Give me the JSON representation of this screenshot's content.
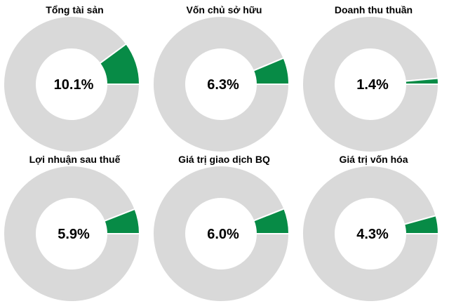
{
  "chart_data": [
    {
      "type": "pie",
      "title": "Tổng tài sản",
      "value_label": "10.1%",
      "value": 10.1,
      "remainder": 89.9
    },
    {
      "type": "pie",
      "title": "Vốn chủ sở hữu",
      "value_label": "6.3%",
      "value": 6.3,
      "remainder": 93.7
    },
    {
      "type": "pie",
      "title": "Doanh thu thuần",
      "value_label": "1.4%",
      "value": 1.4,
      "remainder": 98.6
    },
    {
      "type": "pie",
      "title": "Lợi nhuận sau thuế",
      "value_label": "5.9%",
      "value": 5.9,
      "remainder": 94.1
    },
    {
      "type": "pie",
      "title": "Giá trị giao dịch BQ",
      "value_label": "6.0%",
      "value": 6.0,
      "remainder": 94.0
    },
    {
      "type": "pie",
      "title": "Giá trị vốn hóa",
      "value_label": "4.3%",
      "value": 4.3,
      "remainder": 95.7
    }
  ],
  "colors": {
    "value": "#078b46",
    "remainder": "#d9d9d9",
    "edge": "#ffffff"
  }
}
